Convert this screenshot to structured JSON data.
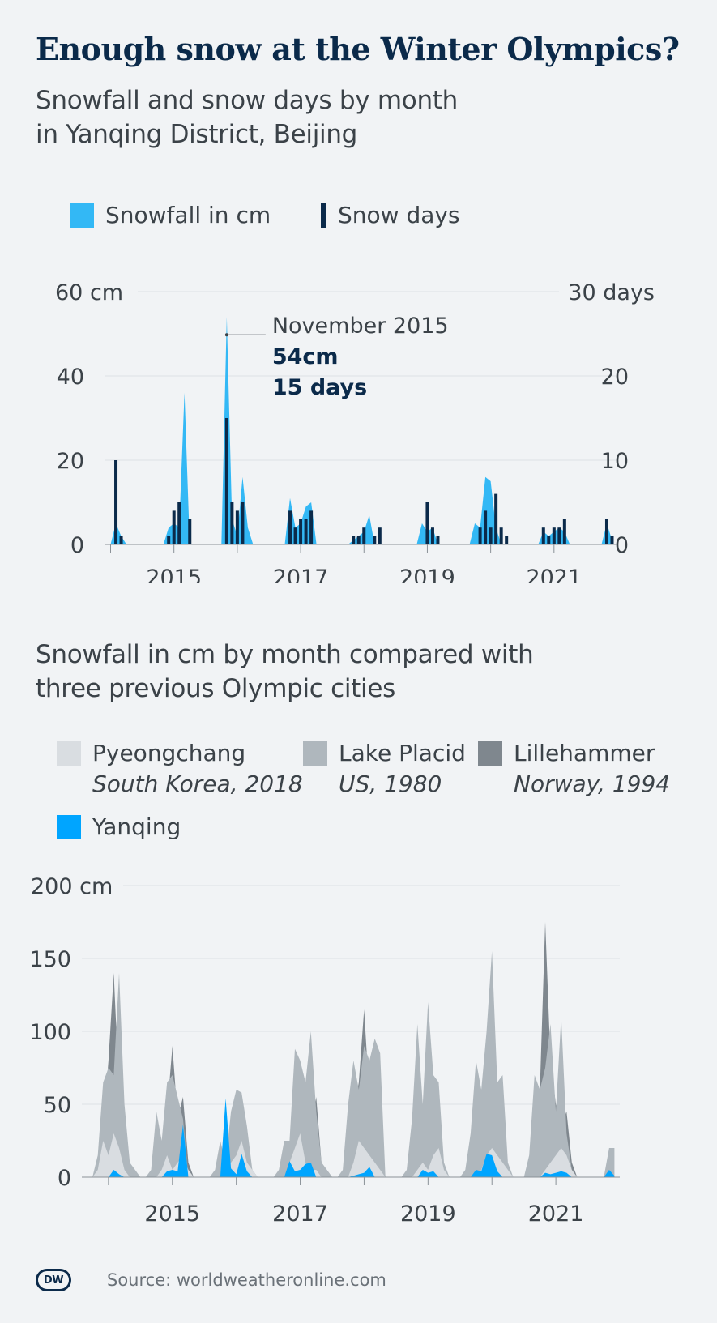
{
  "header": {
    "title": "Enough snow at the Winter Olympics?",
    "subtitle1": "Snowfall and snow days by month\nin Yanqing District, Beijing",
    "subtitle2": "Snowfall in cm by month compared with\nthree previous Olympic cities"
  },
  "legend1": {
    "snowfall": "Snowfall in cm",
    "snow_days": "Snow days"
  },
  "legend2": {
    "pyeongchang": {
      "name": "Pyeongchang",
      "sub": "South Korea, 2018"
    },
    "lake_placid": {
      "name": "Lake Placid",
      "sub": "US, 1980"
    },
    "lillehammer": {
      "name": "Lillehammer",
      "sub": "Norway, 1994"
    },
    "yanqing": {
      "name": "Yanqing"
    }
  },
  "colors": {
    "snowfall": "#33b8f5",
    "snow_days": "#0b2a4a",
    "pyeongchang": "#d9dde1",
    "lake_placid": "#afb7bd",
    "lillehammer": "#7f878e",
    "yanqing": "#00a5ff",
    "grid": "#dde1e5",
    "axis": "#8a9197"
  },
  "annotation": {
    "label": "November 2015",
    "value1": "54cm",
    "value2": "15 days"
  },
  "footer": {
    "logo": "DW",
    "source": "Source: worldweatheronline.com"
  },
  "chart_data": [
    {
      "type": "area",
      "title": "Snowfall and snow days by month in Yanqing District, Beijing",
      "x_unit": "month index from Jan 2014 (0 = Jan 2014)",
      "xlim": [
        -1,
        96
      ],
      "ylim_left": [
        0,
        60
      ],
      "ylim_right": [
        0,
        30
      ],
      "y_ticks_left": [
        0,
        20,
        40,
        60
      ],
      "y_tick_labels_left": [
        "0",
        "20",
        "40",
        "60 cm"
      ],
      "y_ticks_right": [
        0,
        10,
        20,
        30
      ],
      "y_tick_labels_right": [
        "0",
        "10",
        "20",
        "30 days"
      ],
      "x_ticks": [
        12,
        36,
        60,
        84
      ],
      "x_tick_labels": [
        "2015",
        "2017",
        "2019",
        "2021"
      ],
      "minor_x_ticks": [
        0,
        12,
        24,
        36,
        48,
        60,
        72,
        84
      ],
      "snowfall_series": {
        "name": "Snowfall in cm",
        "x": [
          0,
          1,
          2,
          3,
          10,
          11,
          12,
          13,
          14,
          15,
          16,
          17,
          21,
          22,
          23,
          24,
          25,
          26,
          27,
          33,
          34,
          35,
          36,
          37,
          38,
          39,
          40,
          45,
          46,
          47,
          48,
          49,
          50,
          51,
          52,
          58,
          59,
          60,
          61,
          62,
          63,
          68,
          69,
          70,
          71,
          72,
          73,
          74,
          75,
          81,
          82,
          83,
          84,
          85,
          86,
          87,
          93,
          94,
          95
        ],
        "values": [
          0,
          5,
          2,
          0,
          0,
          4,
          5,
          4,
          36,
          0,
          0,
          0,
          0,
          54,
          6,
          2,
          16,
          4,
          0,
          0,
          11,
          4,
          5,
          9,
          10,
          0,
          0,
          0,
          1,
          2,
          3,
          7,
          0,
          0,
          0,
          0,
          5,
          3,
          4,
          0,
          0,
          0,
          5,
          4,
          16,
          15,
          4,
          0,
          0,
          0,
          3,
          2,
          3,
          4,
          3,
          0,
          0,
          5,
          1
        ]
      },
      "snow_days_series": {
        "name": "Snow days",
        "x": [
          1,
          2,
          11,
          12,
          13,
          15,
          22,
          23,
          24,
          25,
          34,
          35,
          36,
          37,
          38,
          46,
          47,
          48,
          50,
          51,
          60,
          61,
          62,
          70,
          71,
          72,
          73,
          74,
          75,
          82,
          83,
          84,
          85,
          86,
          94,
          95
        ],
        "values": [
          10,
          1,
          1,
          4,
          5,
          3,
          15,
          5,
          4,
          5,
          4,
          2,
          3,
          3,
          4,
          1,
          1,
          2,
          1,
          2,
          5,
          2,
          1,
          2,
          4,
          2,
          6,
          2,
          1,
          2,
          1,
          2,
          2,
          3,
          3,
          1
        ]
      },
      "annotation": {
        "x": 22,
        "label": "November 2015",
        "snowfall": 54,
        "snow_days": 15
      }
    },
    {
      "type": "area",
      "title": "Snowfall in cm by month compared with three previous Olympic cities",
      "x_unit": "month index from Jan 2014 (0 = Jan 2014)",
      "xlim": [
        -5,
        96
      ],
      "ylim": [
        0,
        200
      ],
      "y_ticks": [
        0,
        50,
        100,
        150,
        200
      ],
      "y_tick_labels": [
        "0",
        "50",
        "100",
        "150",
        "200 cm"
      ],
      "x_ticks": [
        12,
        36,
        60,
        84
      ],
      "x_tick_labels": [
        "2015",
        "2017",
        "2019",
        "2021"
      ],
      "minor_x_ticks": [
        0,
        12,
        24,
        36,
        48,
        60,
        72,
        84
      ],
      "series": [
        {
          "name": "Lillehammer",
          "x": [
            -3,
            -2,
            -1,
            0,
            1,
            2,
            3,
            4,
            6,
            7,
            8,
            9,
            10,
            11,
            12,
            13,
            14,
            15,
            16,
            18,
            19,
            20,
            21,
            22,
            23,
            24,
            25,
            26,
            27,
            28,
            30,
            31,
            32,
            33,
            34,
            35,
            36,
            37,
            38,
            39,
            40,
            42,
            43,
            44,
            45,
            46,
            47,
            48,
            49,
            50,
            51,
            52,
            54,
            55,
            56,
            57,
            58,
            59,
            60,
            61,
            62,
            63,
            64,
            66,
            67,
            68,
            69,
            70,
            71,
            72,
            73,
            74,
            75,
            76,
            78,
            79,
            80,
            81,
            82,
            83,
            84,
            85,
            86,
            87,
            88
          ],
          "values": [
            0,
            10,
            35,
            80,
            140,
            60,
            15,
            0,
            0,
            0,
            0,
            5,
            20,
            45,
            90,
            40,
            55,
            10,
            0,
            0,
            0,
            0,
            0,
            5,
            15,
            28,
            45,
            20,
            5,
            0,
            0,
            0,
            0,
            5,
            20,
            45,
            55,
            40,
            30,
            55,
            10,
            0,
            0,
            0,
            30,
            45,
            65,
            115,
            55,
            30,
            25,
            0,
            0,
            0,
            0,
            0,
            10,
            40,
            70,
            35,
            15,
            5,
            0,
            0,
            0,
            15,
            35,
            60,
            65,
            40,
            25,
            10,
            0,
            0,
            0,
            10,
            30,
            60,
            175,
            80,
            50,
            35,
            45,
            10,
            0
          ]
        },
        {
          "name": "Lake Placid",
          "x": [
            -3,
            -2,
            -1,
            0,
            1,
            2,
            3,
            4,
            6,
            7,
            8,
            9,
            10,
            11,
            12,
            13,
            14,
            15,
            16,
            18,
            19,
            20,
            21,
            22,
            23,
            24,
            25,
            26,
            27,
            28,
            30,
            31,
            32,
            33,
            34,
            35,
            36,
            37,
            38,
            39,
            40,
            42,
            43,
            44,
            45,
            46,
            47,
            48,
            49,
            50,
            51,
            52,
            54,
            55,
            56,
            57,
            58,
            59,
            60,
            61,
            62,
            63,
            64,
            66,
            67,
            68,
            69,
            70,
            71,
            72,
            73,
            74,
            75,
            76,
            78,
            79,
            80,
            81,
            82,
            83,
            84,
            85,
            86,
            87,
            88,
            93,
            94,
            95
          ],
          "values": [
            0,
            15,
            65,
            75,
            70,
            140,
            50,
            10,
            0,
            0,
            5,
            45,
            25,
            65,
            70,
            55,
            40,
            0,
            0,
            0,
            0,
            5,
            25,
            10,
            45,
            60,
            58,
            35,
            5,
            0,
            0,
            0,
            5,
            25,
            25,
            88,
            80,
            65,
            100,
            45,
            10,
            0,
            0,
            5,
            50,
            80,
            60,
            90,
            80,
            95,
            85,
            0,
            0,
            0,
            5,
            40,
            105,
            50,
            120,
            70,
            65,
            10,
            0,
            0,
            5,
            30,
            80,
            60,
            100,
            155,
            65,
            70,
            10,
            0,
            0,
            15,
            70,
            60,
            75,
            105,
            45,
            110,
            30,
            5,
            0,
            0,
            20,
            20
          ]
        },
        {
          "name": "Pyeongchang",
          "x": [
            -3,
            -2,
            -1,
            0,
            1,
            2,
            3,
            4,
            9,
            10,
            11,
            12,
            13,
            14,
            15,
            16,
            21,
            22,
            23,
            24,
            25,
            26,
            27,
            28,
            33,
            34,
            35,
            36,
            37,
            38,
            39,
            40,
            45,
            46,
            47,
            48,
            49,
            50,
            51,
            52,
            57,
            58,
            59,
            60,
            61,
            62,
            63,
            64,
            69,
            70,
            71,
            72,
            73,
            74,
            75,
            76,
            81,
            82,
            83,
            84,
            85,
            86,
            87,
            88
          ],
          "values": [
            0,
            5,
            25,
            15,
            30,
            20,
            5,
            0,
            0,
            5,
            15,
            5,
            10,
            15,
            5,
            0,
            0,
            5,
            10,
            15,
            25,
            10,
            5,
            0,
            0,
            10,
            20,
            30,
            10,
            5,
            5,
            0,
            0,
            10,
            25,
            20,
            15,
            10,
            5,
            0,
            0,
            5,
            10,
            5,
            15,
            20,
            5,
            0,
            0,
            5,
            15,
            20,
            15,
            10,
            5,
            0,
            0,
            5,
            10,
            15,
            20,
            15,
            5,
            0
          ]
        },
        {
          "name": "Yanqing",
          "x": [
            0,
            1,
            2,
            3,
            10,
            11,
            12,
            13,
            14,
            15,
            16,
            17,
            21,
            22,
            23,
            24,
            25,
            26,
            27,
            33,
            34,
            35,
            36,
            37,
            38,
            39,
            40,
            45,
            46,
            47,
            48,
            49,
            50,
            51,
            52,
            58,
            59,
            60,
            61,
            62,
            63,
            68,
            69,
            70,
            71,
            72,
            73,
            74,
            75,
            81,
            82,
            83,
            84,
            85,
            86,
            87,
            93,
            94,
            95
          ],
          "values": [
            0,
            5,
            2,
            0,
            0,
            4,
            5,
            4,
            36,
            0,
            0,
            0,
            0,
            54,
            6,
            2,
            16,
            4,
            0,
            0,
            11,
            4,
            5,
            9,
            10,
            0,
            0,
            0,
            1,
            2,
            3,
            7,
            0,
            0,
            0,
            0,
            5,
            3,
            4,
            0,
            0,
            0,
            5,
            4,
            16,
            15,
            4,
            0,
            0,
            0,
            3,
            2,
            3,
            4,
            3,
            0,
            0,
            5,
            1
          ]
        }
      ]
    }
  ]
}
